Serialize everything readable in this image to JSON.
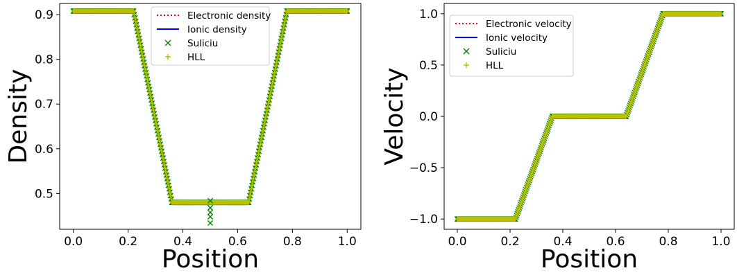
{
  "chart_data": [
    {
      "type": "line",
      "xlabel": "Position",
      "ylabel": "Density",
      "xlim": [
        -0.05,
        1.05
      ],
      "ylim": [
        0.42,
        0.925
      ],
      "xticks": [
        0.0,
        0.2,
        0.4,
        0.6,
        0.8,
        1.0
      ],
      "xtick_labels": [
        "0.0",
        "0.2",
        "0.4",
        "0.6",
        "0.8",
        "1.0"
      ],
      "yticks": [
        0.5,
        0.6,
        0.7,
        0.8,
        0.9
      ],
      "ytick_labels": [
        "0.5",
        "0.6",
        "0.7",
        "0.8",
        "0.9"
      ],
      "grid": false,
      "legend_position": "top-right",
      "curve_x": [
        0.0,
        0.22,
        0.36,
        0.64,
        0.78,
        1.0
      ],
      "series": [
        {
          "name": "Electronic density",
          "style": "dotted",
          "color": "#ff0000",
          "y": [
            0.908,
            0.908,
            0.48,
            0.48,
            0.908,
            0.908
          ]
        },
        {
          "name": "Ionic density",
          "style": "solid",
          "color": "#0000ff",
          "y": [
            0.908,
            0.908,
            0.48,
            0.48,
            0.908,
            0.908
          ]
        },
        {
          "name": "Suliciu",
          "style": "marker-x",
          "color": "#008000",
          "y": [
            0.908,
            0.908,
            0.48,
            0.48,
            0.908,
            0.908
          ]
        },
        {
          "name": "HLL",
          "style": "marker-plus",
          "color": "#bfbf00",
          "y": [
            0.908,
            0.908,
            0.48,
            0.48,
            0.908,
            0.908
          ]
        }
      ],
      "center_spike": {
        "x": 0.5,
        "y": [
          0.484,
          0.468,
          0.458,
          0.448,
          0.434
        ]
      }
    },
    {
      "type": "line",
      "xlabel": "Position",
      "ylabel": "Velocity",
      "xlim": [
        -0.05,
        1.05
      ],
      "ylim": [
        -1.1,
        1.1
      ],
      "xticks": [
        0.0,
        0.2,
        0.4,
        0.6,
        0.8,
        1.0
      ],
      "xtick_labels": [
        "0.0",
        "0.2",
        "0.4",
        "0.6",
        "0.8",
        "1.0"
      ],
      "yticks": [
        -1.0,
        -0.5,
        0.0,
        0.5,
        1.0
      ],
      "ytick_labels": [
        "−1.0",
        "−0.5",
        "0.0",
        "0.5",
        "1.0"
      ],
      "grid": false,
      "legend_position": "top-left",
      "curve_x": [
        0.0,
        0.22,
        0.36,
        0.64,
        0.78,
        1.0
      ],
      "series": [
        {
          "name": "Electronic velocity",
          "style": "dotted",
          "color": "#ff0000",
          "y": [
            -1.0,
            -1.0,
            0.0,
            0.0,
            1.0,
            1.0
          ]
        },
        {
          "name": "Ionic velocity",
          "style": "solid",
          "color": "#0000ff",
          "y": [
            -1.0,
            -1.0,
            0.0,
            0.0,
            1.0,
            1.0
          ]
        },
        {
          "name": "Suliciu",
          "style": "marker-x",
          "color": "#008000",
          "y": [
            -1.0,
            -1.0,
            0.0,
            0.0,
            1.0,
            1.0
          ]
        },
        {
          "name": "HLL",
          "style": "marker-plus",
          "color": "#bfbf00",
          "y": [
            -1.0,
            -1.0,
            0.0,
            0.0,
            1.0,
            1.0
          ]
        }
      ]
    }
  ]
}
